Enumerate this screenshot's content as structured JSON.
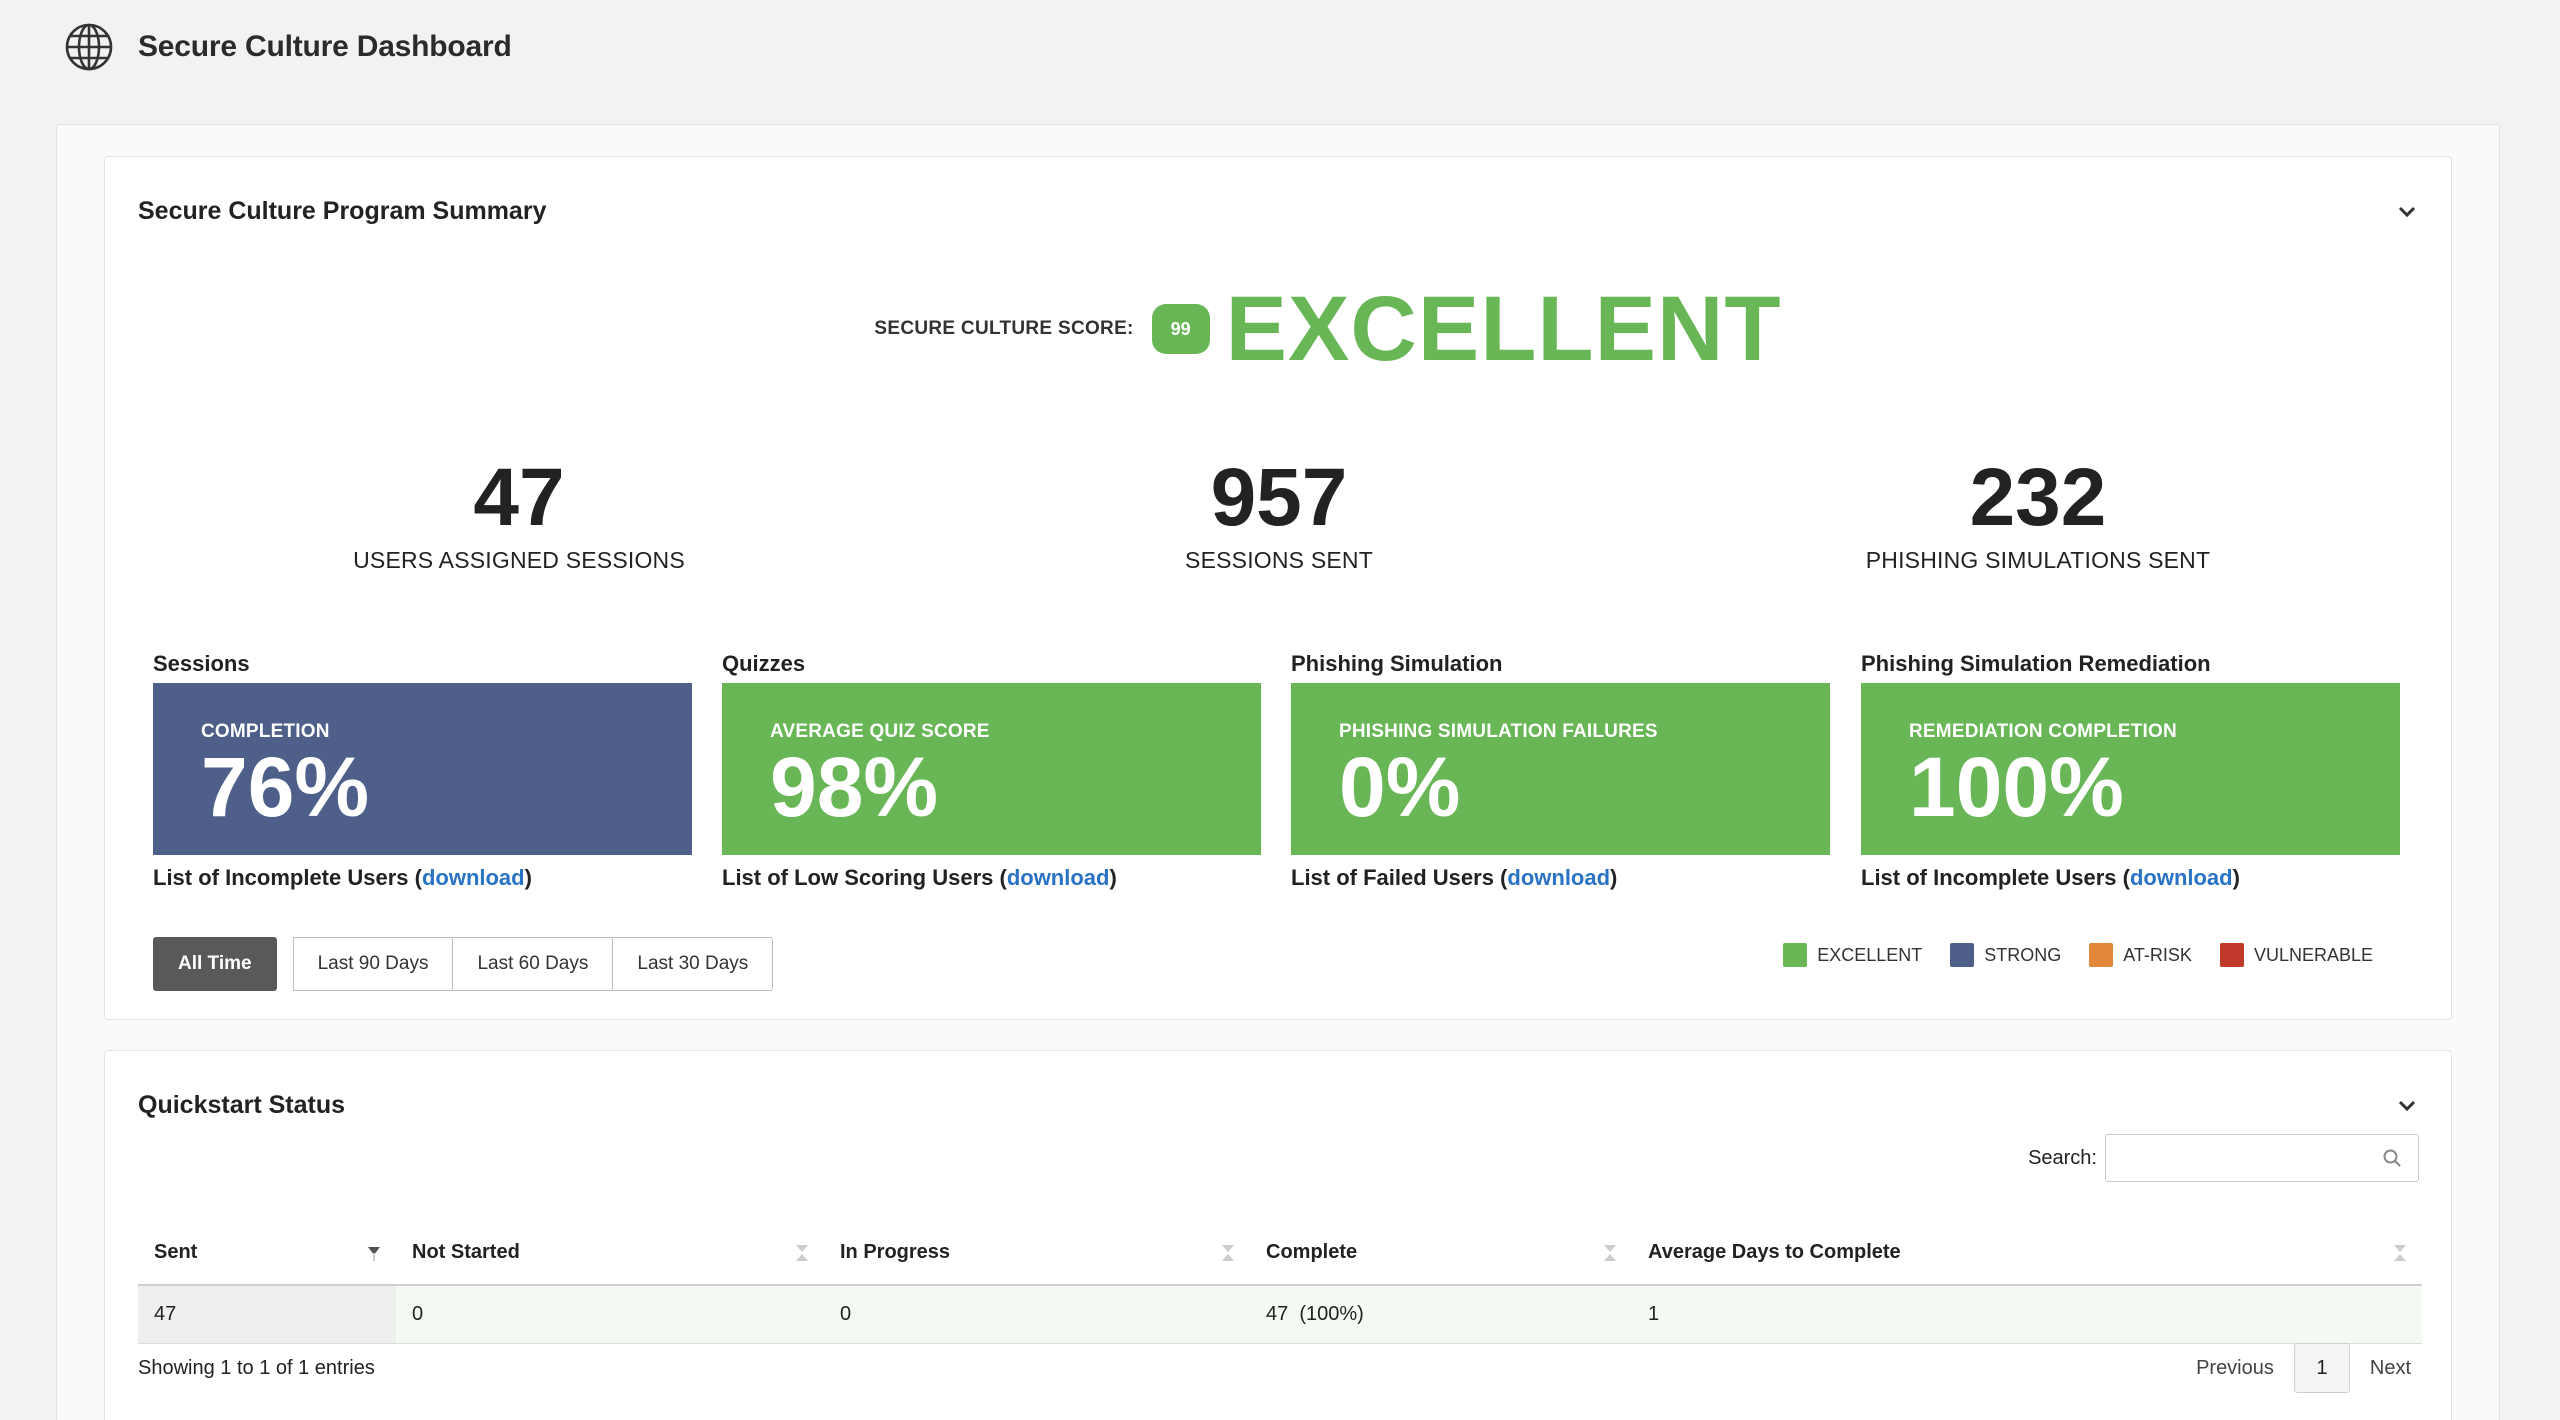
{
  "app": {
    "title": "Secure Culture Dashboard"
  },
  "summary": {
    "title": "Secure Culture Program Summary",
    "score_label": "SECURE CULTURE SCORE:",
    "score_value": "99",
    "score_rating": "EXCELLENT",
    "stats": [
      {
        "value": "47",
        "label": "USERS ASSIGNED SESSIONS"
      },
      {
        "value": "957",
        "label": "SESSIONS SENT"
      },
      {
        "value": "232",
        "label": "PHISHING SIMULATIONS SENT"
      }
    ],
    "metrics": [
      {
        "title": "Sessions",
        "caption": "COMPLETION",
        "value": "76%",
        "link_text": "List of Incomplete Users (",
        "link_label": "download",
        "link_close": ")",
        "color": "#4e6089"
      },
      {
        "title": "Quizzes",
        "caption": "AVERAGE QUIZ SCORE",
        "value": "98%",
        "link_text": "List of Low Scoring Users (",
        "link_label": "download",
        "link_close": ")",
        "color": "#69b656"
      },
      {
        "title": "Phishing Simulation",
        "caption": "PHISHING SIMULATION FAILURES",
        "value": "0%",
        "link_text": "List of Failed Users (",
        "link_label": "download",
        "link_close": ")",
        "color": "#69b656"
      },
      {
        "title": "Phishing Simulation Remediation",
        "caption": "REMEDIATION COMPLETION",
        "value": "100%",
        "link_text": "List of Incomplete Users (",
        "link_label": "download",
        "link_close": ")",
        "color": "#69b656"
      }
    ],
    "ranges": [
      "All Time",
      "Last 90 Days",
      "Last 60 Days",
      "Last 30 Days"
    ],
    "active_range": "All Time",
    "legend": [
      {
        "label": "EXCELLENT",
        "color": "#69b656"
      },
      {
        "label": "STRONG",
        "color": "#4e6089"
      },
      {
        "label": "AT-RISK",
        "color": "#e0873a"
      },
      {
        "label": "VULNERABLE",
        "color": "#c0392b"
      }
    ]
  },
  "quickstart": {
    "title": "Quickstart Status",
    "search_label": "Search:",
    "search_value": "",
    "columns": [
      "Sent",
      "Not Started",
      "In Progress",
      "Complete",
      "Average Days to Complete"
    ],
    "rows": [
      [
        "47",
        "0",
        "0",
        "47  (100%)",
        "1"
      ]
    ],
    "info": "Showing 1 to 1 of 1 entries",
    "pager": {
      "previous": "Previous",
      "page": "1",
      "next": "Next"
    }
  }
}
